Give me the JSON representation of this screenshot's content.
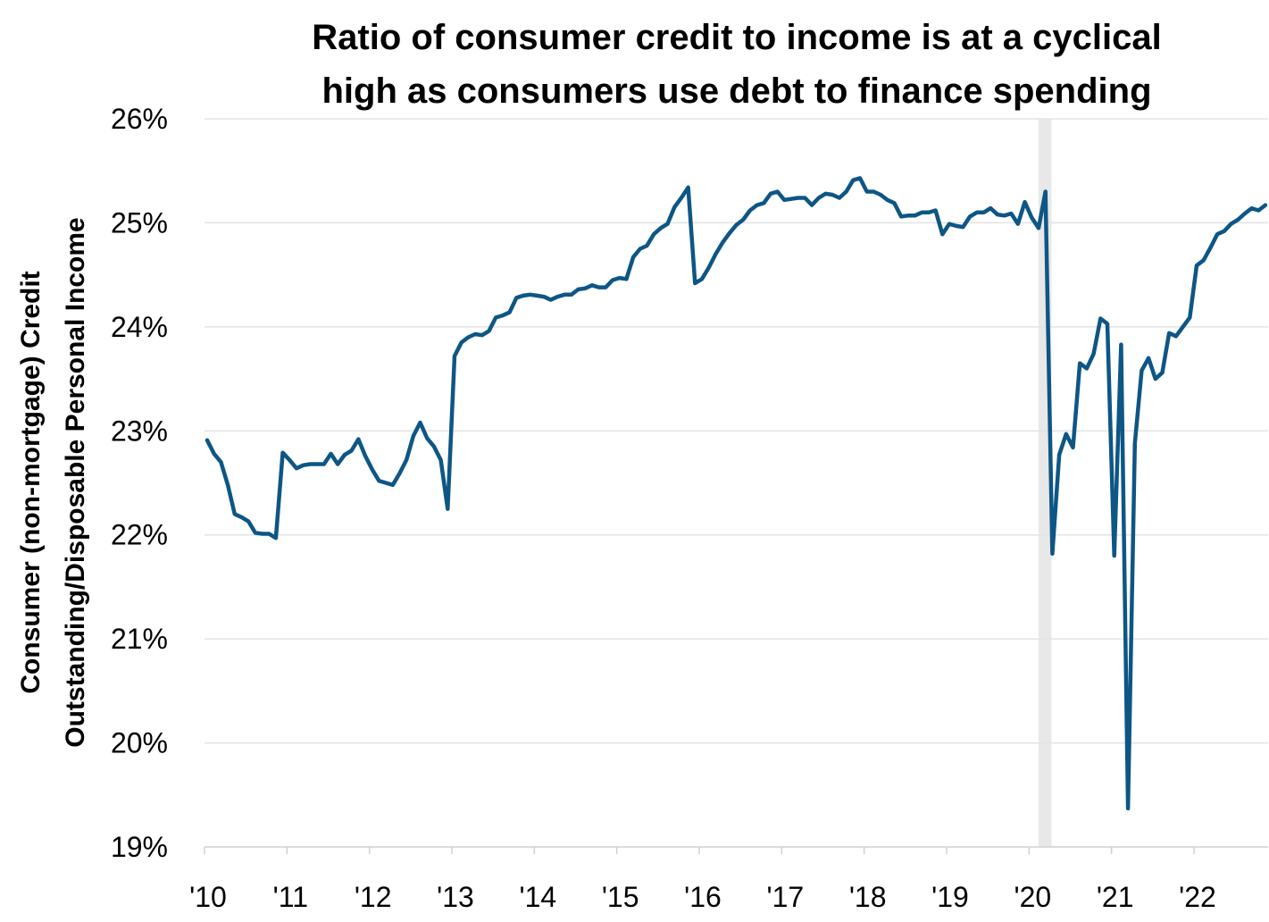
{
  "chart_data": {
    "type": "line",
    "title": [
      "Ratio of consumer credit to income is at a cyclical",
      "high as consumers use debt to finance spending"
    ],
    "ylabel": [
      "Consumer (non-mortgage) Credit",
      "Outstanding/Disposable Personal Income"
    ],
    "xlabel": "",
    "ylim": [
      19,
      26
    ],
    "yticks": [
      "19%",
      "20%",
      "21%",
      "22%",
      "23%",
      "24%",
      "25%",
      "26%"
    ],
    "xticks": [
      "'10",
      "'11",
      "'12",
      "'13",
      "'14",
      "'15",
      "'16",
      "'17",
      "'18",
      "'19",
      "'20",
      "'21",
      "'22"
    ],
    "xrange": [
      "2010-01",
      "2022-11"
    ],
    "frequency": "monthly",
    "grid": "horizontal",
    "line_color": "#0d5685",
    "recession_shading": {
      "from": "2020-02",
      "to": "2020-04",
      "color": "#e8e8e8"
    },
    "series_by_year": {
      "2010": [
        22.91,
        22.78,
        22.7,
        22.48,
        22.2,
        22.17,
        22.13,
        22.02,
        22.01,
        22.01,
        21.97,
        22.79
      ],
      "2011": [
        22.72,
        22.64,
        22.67,
        22.68,
        22.68,
        22.68,
        22.78,
        22.68,
        22.77,
        22.81,
        22.92,
        22.76
      ],
      "2012": [
        22.63,
        22.52,
        22.5,
        22.48,
        22.59,
        22.72,
        22.95,
        23.08,
        22.93,
        22.85,
        22.72,
        22.25
      ],
      "2013": [
        23.72,
        23.85,
        23.9,
        23.93,
        23.92,
        23.96,
        24.09,
        24.11,
        24.14,
        24.28,
        24.3,
        24.31
      ],
      "2014": [
        24.3,
        24.29,
        24.26,
        24.29,
        24.31,
        24.31,
        24.36,
        24.37,
        24.4,
        24.38,
        24.38,
        24.45
      ],
      "2015": [
        24.47,
        24.46,
        24.67,
        24.75,
        24.78,
        24.89,
        24.95,
        24.99,
        25.15,
        25.24,
        25.34,
        24.42
      ],
      "2016": [
        24.46,
        24.57,
        24.7,
        24.81,
        24.9,
        24.98,
        25.03,
        25.12,
        25.17,
        25.19,
        25.28,
        25.3
      ],
      "2017": [
        25.22,
        25.23,
        25.24,
        25.24,
        25.17,
        25.24,
        25.28,
        25.27,
        25.24,
        25.3,
        25.41,
        25.43
      ],
      "2018": [
        25.3,
        25.3,
        25.27,
        25.22,
        25.19,
        25.06,
        25.07,
        25.07,
        25.1,
        25.1,
        25.12,
        24.89
      ],
      "2019": [
        24.99,
        24.97,
        24.96,
        25.06,
        25.1,
        25.1,
        25.14,
        25.08,
        25.07,
        25.09,
        24.99,
        25.2
      ],
      "2020": [
        25.05,
        24.95,
        25.3,
        21.82,
        22.77,
        22.97,
        22.84,
        23.65,
        23.6,
        23.74,
        24.08,
        24.03
      ],
      "2021": [
        21.8,
        23.83,
        19.37,
        22.88,
        23.58,
        23.7,
        23.5,
        23.56,
        23.94,
        23.91,
        24.0,
        24.09
      ],
      "2022": [
        24.59,
        24.64,
        24.76,
        24.89,
        24.92,
        24.99,
        25.03,
        25.09,
        25.14,
        25.12,
        25.17
      ]
    }
  }
}
